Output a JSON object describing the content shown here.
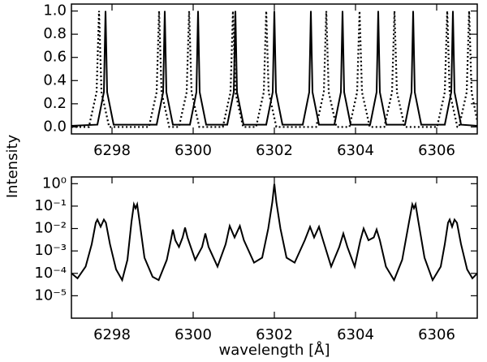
{
  "chart_data": [
    {
      "type": "line",
      "ylabel": "Intensity",
      "xlim": [
        6297,
        6307
      ],
      "xticks": [
        6298,
        6300,
        6302,
        6304,
        6306
      ],
      "ylim": [
        -0.06,
        1.06
      ],
      "yticks": [
        {
          "value": 0,
          "label": "0.0"
        },
        0.2,
        0.4,
        0.6,
        0.8,
        {
          "value": 1,
          "label": "1.0"
        }
      ],
      "series": [
        {
          "color": "#000000",
          "dash": "solid",
          "x": [
            6297,
            6297.64,
            6297.8,
            6297.84,
            6297.88,
            6298.04,
            6299.1,
            6299.26,
            6299.3,
            6299.34,
            6299.5,
            6299.92,
            6300.08,
            6300.12,
            6300.16,
            6300.32,
            6300.84,
            6301,
            6301.04,
            6301.08,
            6301.24,
            6301.8,
            6301.96,
            6302,
            6302.04,
            6302.2,
            6302.7,
            6302.86,
            6302.9,
            6302.94,
            6303.1,
            6303.48,
            6303.64,
            6303.68,
            6303.72,
            6303.88,
            6304.36,
            6304.52,
            6304.56,
            6304.6,
            6304.76,
            6305.22,
            6305.38,
            6305.42,
            6305.46,
            6305.62,
            6306.2,
            6306.36,
            6306.4,
            6306.44,
            6306.6,
            6307
          ],
          "values": [
            0.01,
            0.02,
            0.3,
            1,
            0.3,
            0.02,
            0.02,
            0.3,
            1,
            0.3,
            0.02,
            0.02,
            0.3,
            1,
            0.3,
            0.02,
            0.02,
            0.3,
            1,
            0.3,
            0.02,
            0.02,
            0.3,
            1,
            0.3,
            0.02,
            0.02,
            0.3,
            1,
            0.3,
            0.02,
            0.02,
            0.3,
            1,
            0.3,
            0.02,
            0.02,
            0.3,
            1,
            0.3,
            0.02,
            0.02,
            0.3,
            1,
            0.3,
            0.02,
            0.02,
            0.3,
            1,
            0.3,
            0.02,
            0.01
          ]
        },
        {
          "color": "#000000",
          "dash": "dotted",
          "x": [
            6297,
            6297.43,
            6297.62,
            6297.68,
            6297.74,
            6297.93,
            6298.91,
            6299.1,
            6299.16,
            6299.22,
            6299.41,
            6299.65,
            6299.84,
            6299.9,
            6299.96,
            6300.15,
            6300.73,
            6300.92,
            6300.98,
            6301.04,
            6301.23,
            6301.55,
            6301.74,
            6301.8,
            6301.86,
            6302.05,
            6303.03,
            6303.22,
            6303.28,
            6303.34,
            6303.53,
            6303.85,
            6304.04,
            6304.1,
            6304.16,
            6304.35,
            6304.71,
            6304.9,
            6304.96,
            6305.02,
            6305.21,
            6306.01,
            6306.2,
            6306.26,
            6306.32,
            6306.51,
            6306.55,
            6306.74,
            6306.8,
            6306.86,
            6307
          ],
          "values": [
            0.0,
            0.0,
            0.3,
            1,
            0.3,
            0.0,
            0.0,
            0.3,
            1,
            0.3,
            0.0,
            0.0,
            0.3,
            1,
            0.3,
            0.0,
            0.0,
            0.3,
            1,
            0.3,
            0.0,
            0.0,
            0.3,
            1,
            0.3,
            0.0,
            0.0,
            0.3,
            1,
            0.3,
            0.0,
            0.0,
            0.3,
            1,
            0.3,
            0.0,
            0.0,
            0.3,
            1,
            0.3,
            0.0,
            0.0,
            0.3,
            1,
            0.3,
            0.0,
            0.0,
            0.3,
            1,
            0.3,
            0.05
          ]
        }
      ]
    },
    {
      "type": "line",
      "xlabel": "wavelength [Å]",
      "ylog": true,
      "xlim": [
        6297,
        6307
      ],
      "xticks": [
        6298,
        6300,
        6302,
        6304,
        6306
      ],
      "ylim": [
        1e-06,
        2
      ],
      "yticks": [
        {
          "value": 1e-05,
          "label": "10⁻⁵"
        },
        {
          "value": 0.0001,
          "label": "10⁻⁴"
        },
        {
          "value": 0.001,
          "label": "10⁻³"
        },
        {
          "value": 0.01,
          "label": "10⁻²"
        },
        {
          "value": 0.1,
          "label": "10⁻¹"
        },
        {
          "value": 1,
          "label": "10⁰"
        }
      ],
      "series": [
        {
          "color": "#000000",
          "dash": "solid",
          "x": [
            6297,
            6297.15,
            6297.35,
            6297.5,
            6297.6,
            6297.64,
            6297.72,
            6297.8,
            6297.85,
            6297.95,
            6298.1,
            6298.25,
            6298.38,
            6298.48,
            6298.54,
            6298.58,
            6298.62,
            6298.68,
            6298.8,
            6299,
            6299.15,
            6299.35,
            6299.45,
            6299.5,
            6299.56,
            6299.65,
            6299.74,
            6299.8,
            6299.86,
            6300.05,
            6300.22,
            6300.3,
            6300.38,
            6300.6,
            6300.8,
            6300.9,
            6301.02,
            6301.15,
            6301.25,
            6301.5,
            6301.7,
            6301.85,
            6301.95,
            6302,
            6302.05,
            6302.15,
            6302.3,
            6302.5,
            6302.75,
            6302.88,
            6302.98,
            6303.1,
            6303.2,
            6303.4,
            6303.6,
            6303.7,
            6303.8,
            6303.98,
            6304.12,
            6304.2,
            6304.32,
            6304.45,
            6304.52,
            6304.6,
            6304.75,
            6304.95,
            6305.15,
            6305.32,
            6305.4,
            6305.44,
            6305.48,
            6305.55,
            6305.7,
            6305.9,
            6306.1,
            6306.2,
            6306.28,
            6306.32,
            6306.38,
            6306.44,
            6306.5,
            6306.6,
            6306.75,
            6306.88,
            6307
          ],
          "values": [
            0.0001,
            6e-05,
            0.0002,
            0.002,
            0.018,
            0.025,
            0.012,
            0.025,
            0.018,
            0.002,
            0.00015,
            5e-05,
            0.0004,
            0.02,
            0.12,
            0.08,
            0.12,
            0.02,
            0.0005,
            7e-05,
            5e-05,
            0.0004,
            0.003,
            0.009,
            0.003,
            0.0015,
            0.004,
            0.011,
            0.004,
            0.0004,
            0.0015,
            0.006,
            0.0015,
            0.0002,
            0.002,
            0.013,
            0.004,
            0.013,
            0.003,
            0.0003,
            0.0005,
            0.01,
            0.15,
            1,
            0.15,
            0.01,
            0.0005,
            0.0003,
            0.003,
            0.012,
            0.004,
            0.012,
            0.003,
            0.0002,
            0.0015,
            0.006,
            0.0015,
            0.0002,
            0.003,
            0.01,
            0.003,
            0.004,
            0.009,
            0.003,
            0.0002,
            5e-05,
            0.0004,
            0.02,
            0.12,
            0.08,
            0.12,
            0.02,
            0.0005,
            5e-05,
            0.0002,
            0.002,
            0.018,
            0.025,
            0.012,
            0.025,
            0.018,
            0.002,
            0.00015,
            6e-05,
            0.0001
          ]
        }
      ]
    }
  ]
}
